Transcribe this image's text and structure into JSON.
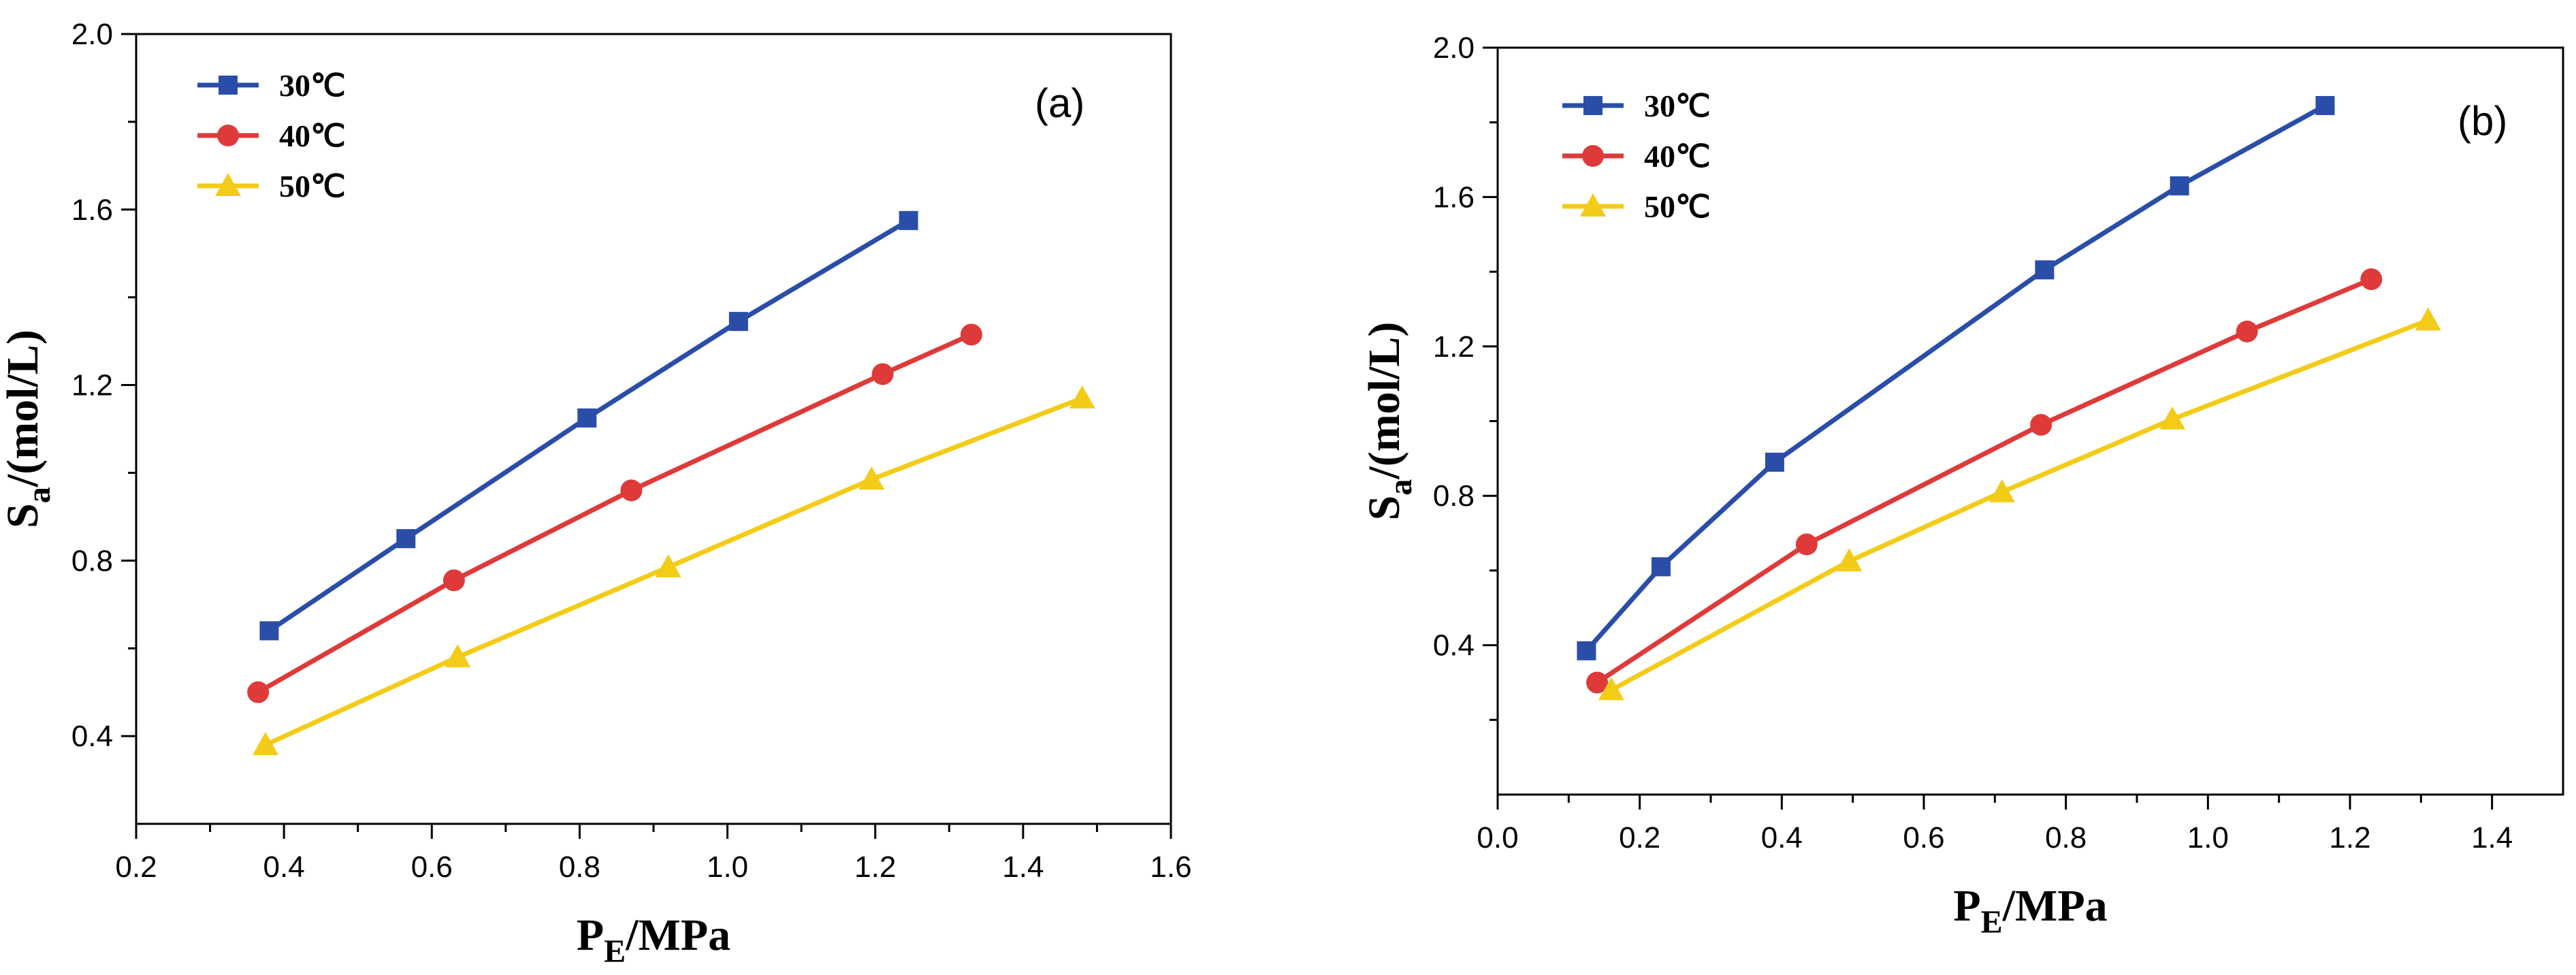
{
  "colors": {
    "30C": "#2a4ea8",
    "40C": "#de3a3a",
    "50C": "#f2cc18",
    "axis": "#000000"
  },
  "chart_data": [
    {
      "type": "line",
      "panel_label": "(a)",
      "xlabel_main": "P",
      "xlabel_sub": "E",
      "xlabel_rest": "/MPa",
      "ylabel_main": "S",
      "ylabel_sub": "a",
      "ylabel_rest": "/(mol/L)",
      "xlim": [
        0.2,
        1.6
      ],
      "ylim": [
        0.2,
        2.0
      ],
      "xticks": [
        0.2,
        0.4,
        0.6,
        0.8,
        1.0,
        1.2,
        1.4,
        1.6
      ],
      "xtick_labels": [
        "0.2",
        "0.4",
        "0.6",
        "0.8",
        "1.0",
        "1.2",
        "1.4",
        "1.6"
      ],
      "yticks": [
        0.4,
        0.8,
        1.2,
        1.6,
        2.0
      ],
      "ytick_labels": [
        "0.4",
        "0.8",
        "1.2",
        "1.6",
        "2.0"
      ],
      "legend_position": "top-left",
      "series": [
        {
          "name": "30℃",
          "marker": "square",
          "color_key": "30C",
          "x": [
            0.38,
            0.565,
            0.81,
            1.015,
            1.245
          ],
          "y": [
            0.64,
            0.85,
            1.125,
            1.345,
            1.575
          ]
        },
        {
          "name": "40℃",
          "marker": "circle",
          "color_key": "40C",
          "x": [
            0.365,
            0.63,
            0.87,
            1.21,
            1.33
          ],
          "y": [
            0.5,
            0.755,
            0.96,
            1.225,
            1.315
          ]
        },
        {
          "name": "50℃",
          "marker": "triangle",
          "color_key": "50C",
          "x": [
            0.375,
            0.635,
            0.92,
            1.195,
            1.48
          ],
          "y": [
            0.38,
            0.58,
            0.785,
            0.985,
            1.17
          ]
        }
      ]
    },
    {
      "type": "line",
      "panel_label": "(b)",
      "xlabel_main": "P",
      "xlabel_sub": "E",
      "xlabel_rest": "/MPa",
      "ylabel_main": "S",
      "ylabel_sub": "a",
      "ylabel_rest": "/(mol/L)",
      "xlim": [
        0.0,
        1.5
      ],
      "ylim": [
        0.0,
        2.0
      ],
      "xticks": [
        0.0,
        0.2,
        0.4,
        0.6,
        0.8,
        1.0,
        1.2,
        1.4
      ],
      "xtick_labels": [
        "0.0",
        "0.2",
        "0.4",
        "0.6",
        "0.8",
        "1.0",
        "1.2",
        "1.4"
      ],
      "yticks": [
        0.4,
        0.8,
        1.2,
        1.6,
        2.0
      ],
      "ytick_labels": [
        "0.4",
        "0.8",
        "1.2",
        "1.6",
        "2.0"
      ],
      "legend_position": "top-left",
      "series": [
        {
          "name": "30℃",
          "marker": "square",
          "color_key": "30C",
          "x": [
            0.125,
            0.23,
            0.39,
            0.77,
            0.96,
            1.165
          ],
          "y": [
            0.385,
            0.61,
            0.89,
            1.405,
            1.63,
            1.845
          ]
        },
        {
          "name": "40℃",
          "marker": "circle",
          "color_key": "40C",
          "x": [
            0.14,
            0.435,
            0.765,
            1.055,
            1.23
          ],
          "y": [
            0.3,
            0.67,
            0.99,
            1.24,
            1.38
          ]
        },
        {
          "name": "50℃",
          "marker": "triangle",
          "color_key": "50C",
          "x": [
            0.16,
            0.495,
            0.71,
            0.95,
            1.31
          ],
          "y": [
            0.28,
            0.625,
            0.81,
            1.005,
            1.27
          ]
        }
      ]
    }
  ]
}
